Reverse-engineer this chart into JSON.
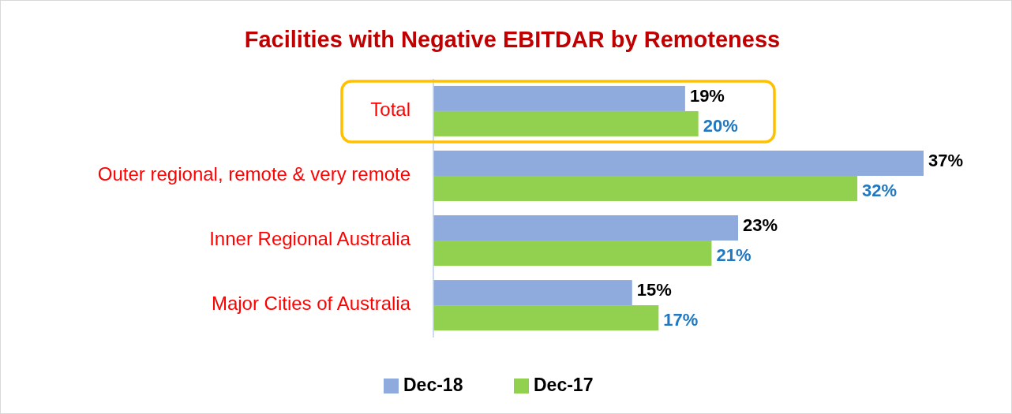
{
  "chart_data": {
    "type": "bar",
    "orientation": "horizontal",
    "title": "Facilities with Negative EBITDAR by Remoteness",
    "categories": [
      "Total",
      "Outer regional, remote & very remote",
      "Inner Regional Australia",
      "Major Cities of Australia"
    ],
    "legend": "bottom",
    "series": [
      {
        "name": "Dec-18",
        "color": "#8faadc",
        "values": [
          19,
          37,
          23,
          15
        ],
        "value_labels": [
          "19%",
          "37%",
          "23%",
          "15%"
        ]
      },
      {
        "name": "Dec-17",
        "color": "#92d050",
        "values": [
          20,
          32,
          21,
          17
        ],
        "value_labels": [
          "20%",
          "32%",
          "21%",
          "17%"
        ]
      }
    ]
  }
}
